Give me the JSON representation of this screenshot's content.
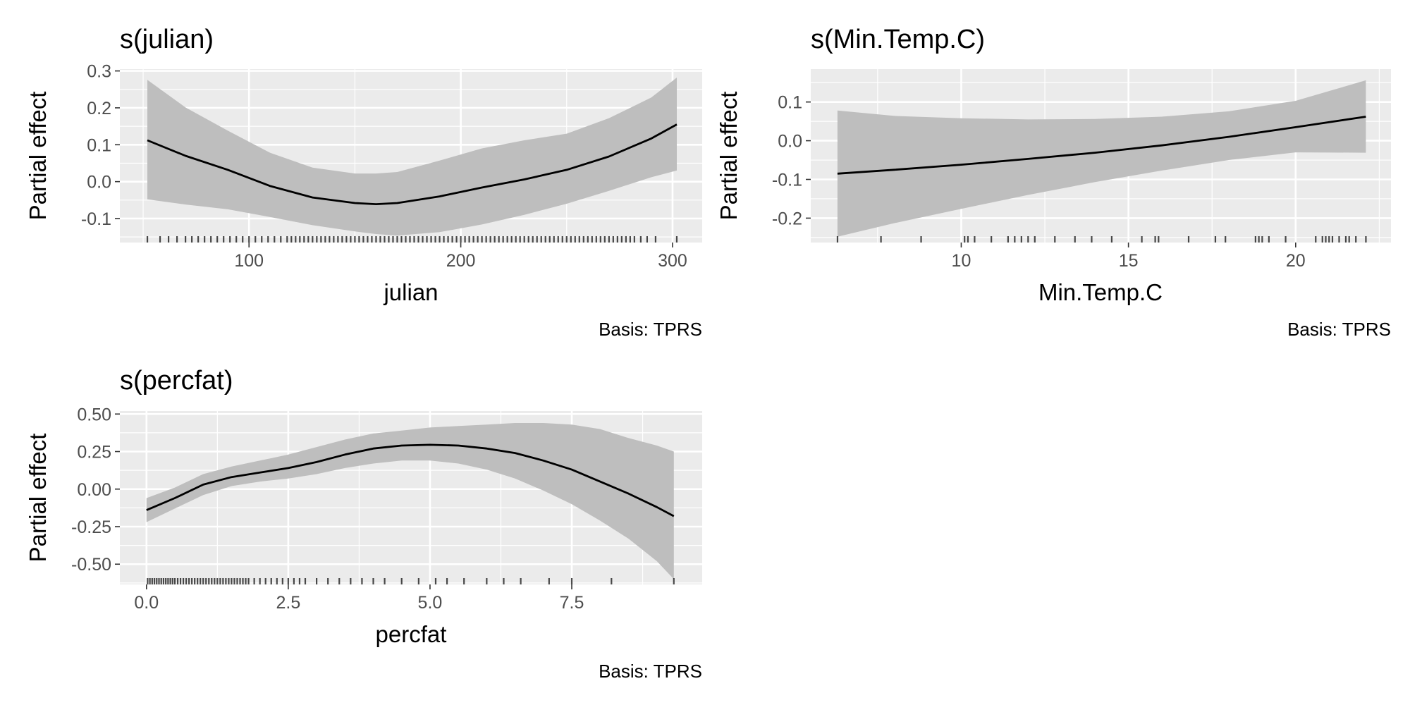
{
  "chart_data": [
    {
      "type": "line",
      "title": "s(julian)",
      "xlabel": "julian",
      "ylabel": "Partial effect",
      "caption": "Basis: TPRS",
      "xlim": [
        39,
        314
      ],
      "ylim": [
        -0.165,
        0.305
      ],
      "xticks": [
        100,
        200,
        300
      ],
      "xtick_labels": [
        "100",
        "200",
        "300"
      ],
      "yticks": [
        -0.1,
        0.0,
        0.1,
        0.2,
        0.3
      ],
      "ytick_labels": [
        "-0.1",
        "0.0",
        "0.1",
        "0.2",
        "0.3"
      ],
      "grid": true,
      "series": [
        {
          "x": [
            52,
            70,
            90,
            110,
            130,
            150,
            160,
            170,
            190,
            210,
            230,
            250,
            270,
            290,
            302
          ],
          "y": [
            0.112,
            0.07,
            0.032,
            -0.012,
            -0.043,
            -0.058,
            -0.061,
            -0.058,
            -0.04,
            -0.016,
            0.006,
            0.032,
            0.068,
            0.117,
            0.155
          ],
          "lower": [
            -0.048,
            -0.062,
            -0.075,
            -0.096,
            -0.118,
            -0.135,
            -0.142,
            -0.146,
            -0.137,
            -0.116,
            -0.09,
            -0.06,
            -0.025,
            0.012,
            0.03
          ],
          "upper": [
            0.276,
            0.201,
            0.138,
            0.078,
            0.038,
            0.022,
            0.022,
            0.026,
            0.057,
            0.09,
            0.112,
            0.13,
            0.172,
            0.228,
            0.282
          ]
        }
      ],
      "rug": [
        52,
        58,
        62,
        66,
        70,
        73,
        76,
        79,
        82,
        85,
        88,
        91,
        94,
        97,
        100,
        103,
        106,
        109,
        112,
        115,
        118,
        120,
        122,
        124,
        126,
        128,
        130,
        132,
        134,
        136,
        138,
        140,
        142,
        144,
        146,
        148,
        150,
        152,
        154,
        156,
        158,
        160,
        162,
        164,
        166,
        168,
        170,
        172,
        174,
        176,
        178,
        180,
        182,
        184,
        186,
        188,
        190,
        192,
        194,
        196,
        198,
        200,
        202,
        204,
        206,
        208,
        210,
        212,
        214,
        216,
        218,
        220,
        222,
        224,
        226,
        228,
        230,
        232,
        234,
        236,
        238,
        240,
        242,
        244,
        246,
        248,
        250,
        252,
        254,
        256,
        258,
        260,
        262,
        264,
        266,
        268,
        270,
        272,
        274,
        276,
        278,
        280,
        282,
        285,
        288,
        292,
        302
      ]
    },
    {
      "type": "line",
      "title": "s(Min.Temp.C)",
      "xlabel": "Min.Temp.C",
      "ylabel": "Partial effect",
      "caption": "Basis: TPRS",
      "xlim": [
        5.5,
        22.85
      ],
      "ylim": [
        -0.263,
        0.185
      ],
      "xticks": [
        10,
        15,
        20
      ],
      "xtick_labels": [
        "10",
        "15",
        "20"
      ],
      "yticks": [
        -0.2,
        -0.1,
        0.0,
        0.1
      ],
      "ytick_labels": [
        "-0.2",
        "-0.1",
        "0.0",
        "0.1"
      ],
      "grid": true,
      "series": [
        {
          "x": [
            6.3,
            8,
            10,
            12,
            14,
            16,
            18,
            20,
            22.1
          ],
          "y": [
            -0.085,
            -0.075,
            -0.062,
            -0.047,
            -0.031,
            -0.012,
            0.01,
            0.035,
            0.062
          ],
          "lower": [
            -0.248,
            -0.213,
            -0.176,
            -0.14,
            -0.107,
            -0.077,
            -0.05,
            -0.03,
            -0.031
          ],
          "upper": [
            0.078,
            0.064,
            0.058,
            0.055,
            0.056,
            0.062,
            0.076,
            0.103,
            0.156
          ]
        }
      ],
      "rug": [
        6.3,
        7.6,
        8.8,
        10.1,
        10.2,
        10.4,
        10.9,
        11.4,
        11.6,
        11.8,
        12.0,
        12.2,
        12.8,
        13.4,
        13.9,
        14.5,
        15.4,
        15.8,
        15.9,
        16.8,
        17.6,
        17.9,
        18.8,
        18.9,
        19.0,
        19.2,
        19.7,
        20.6,
        20.8,
        20.9,
        21.0,
        21.1,
        21.3,
        21.5,
        21.6,
        21.8,
        22.1
      ]
    },
    {
      "type": "line",
      "title": "s(percfat)",
      "xlabel": "percfat",
      "ylabel": "Partial effect",
      "caption": "Basis: TPRS",
      "xlim": [
        -0.47,
        9.8
      ],
      "ylim": [
        -0.635,
        0.52
      ],
      "xticks": [
        0.0,
        2.5,
        5.0,
        7.5
      ],
      "xtick_labels": [
        "0.0",
        "2.5",
        "5.0",
        "7.5"
      ],
      "yticks": [
        -0.5,
        -0.25,
        0.0,
        0.25,
        0.5
      ],
      "ytick_labels": [
        "-0.50",
        "-0.25",
        "0.00",
        "0.25",
        "0.50"
      ],
      "grid": true,
      "series": [
        {
          "x": [
            0.0,
            0.5,
            1.0,
            1.5,
            2.0,
            2.5,
            3.0,
            3.5,
            4.0,
            4.5,
            5.0,
            5.5,
            6.0,
            6.5,
            7.0,
            7.5,
            8.0,
            8.5,
            9.0,
            9.3
          ],
          "y": [
            -0.14,
            -0.06,
            0.03,
            0.08,
            0.11,
            0.14,
            0.18,
            0.23,
            0.27,
            0.29,
            0.295,
            0.29,
            0.27,
            0.24,
            0.19,
            0.13,
            0.05,
            -0.03,
            -0.12,
            -0.18
          ],
          "lower": [
            -0.22,
            -0.13,
            -0.04,
            0.02,
            0.05,
            0.07,
            0.1,
            0.14,
            0.17,
            0.19,
            0.19,
            0.17,
            0.13,
            0.07,
            -0.01,
            -0.1,
            -0.21,
            -0.33,
            -0.48,
            -0.6
          ],
          "upper": [
            -0.06,
            0.01,
            0.1,
            0.15,
            0.19,
            0.23,
            0.28,
            0.33,
            0.37,
            0.39,
            0.41,
            0.42,
            0.43,
            0.44,
            0.44,
            0.43,
            0.4,
            0.34,
            0.29,
            0.25
          ]
        }
      ],
      "rug": [
        0.02,
        0.06,
        0.1,
        0.14,
        0.18,
        0.22,
        0.26,
        0.3,
        0.34,
        0.38,
        0.42,
        0.46,
        0.5,
        0.55,
        0.6,
        0.65,
        0.7,
        0.75,
        0.8,
        0.85,
        0.9,
        0.95,
        1.0,
        1.05,
        1.1,
        1.15,
        1.2,
        1.25,
        1.3,
        1.35,
        1.4,
        1.45,
        1.5,
        1.55,
        1.6,
        1.65,
        1.7,
        1.75,
        1.8,
        1.9,
        2.0,
        2.1,
        2.2,
        2.3,
        2.4,
        2.5,
        2.6,
        2.7,
        2.8,
        3.0,
        3.2,
        3.4,
        3.6,
        3.8,
        4.0,
        4.2,
        4.5,
        4.8,
        5.1,
        5.3,
        5.6,
        6.0,
        6.3,
        6.6,
        7.1,
        7.5,
        8.2,
        9.3
      ]
    }
  ]
}
